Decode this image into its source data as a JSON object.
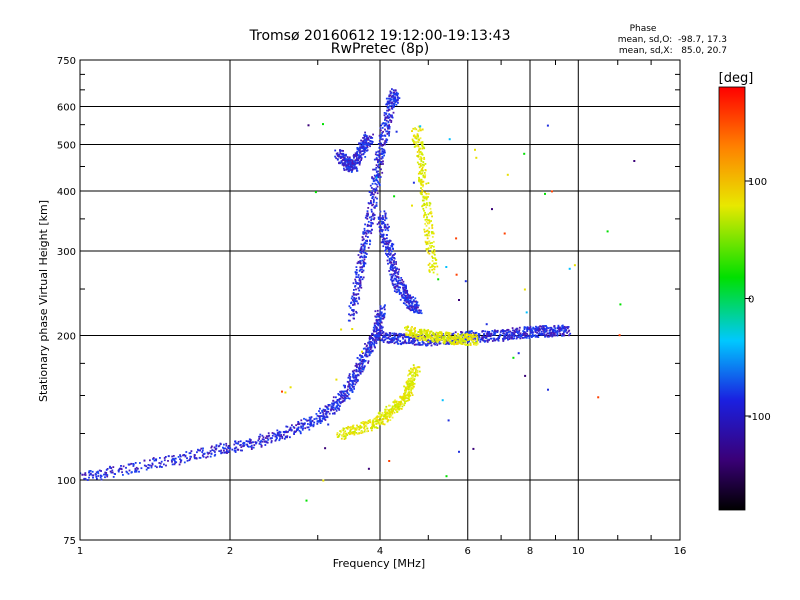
{
  "chart_data": {
    "type": "scatter",
    "title": "Tromsø 20160612 19:12:00-19:13:43",
    "subtitle": "RwPretec (8p)",
    "xlabel": "Frequency [MHz]",
    "ylabel": "Stationary phase Virtual Height [km]",
    "x_scale": "log2",
    "y_scale": "log",
    "xlim": [
      1,
      16
    ],
    "ylim": [
      75,
      750
    ],
    "x_ticks": [
      1,
      2,
      4,
      6,
      8,
      10,
      16
    ],
    "x_tick_labels": [
      "1",
      "2",
      "4",
      "6",
      "8",
      "10",
      "16"
    ],
    "y_ticks": [
      75,
      100,
      200,
      300,
      400,
      500,
      600,
      750
    ],
    "y_tick_labels": [
      "75",
      "100",
      "200",
      "300",
      "400",
      "500",
      "600",
      "750"
    ],
    "grid": true,
    "legend": {
      "title": "Phase",
      "line1": "mean, sd,O:  -98.7, 17.3",
      "line2": "mean, sd,X:   85.0, 20.7"
    },
    "colorbar": {
      "label": "[deg]",
      "range": [
        -180,
        180
      ],
      "ticks": [
        100,
        0,
        -100
      ],
      "tick_labels": [
        "100",
        "0",
        "-100"
      ]
    },
    "series": [
      {
        "name": "O-mode trace",
        "phase_deg": -100,
        "color": "#2030e0",
        "segments": [
          {
            "f": [
              1.0,
              1.2,
              1.5,
              1.8,
              2.1,
              2.4,
              2.7,
              3.0,
              3.2,
              3.4,
              3.55,
              3.7,
              3.85,
              3.95,
              4.0
            ],
            "h": [
              102,
              105,
              110,
              115,
              118,
              123,
              128,
              135,
              142,
              152,
              165,
              180,
              196,
              210,
              230
            ]
          },
          {
            "f": [
              3.5,
              3.6,
              3.7,
              3.8,
              3.9,
              4.0,
              4.1,
              4.2,
              4.3
            ],
            "h": [
              220,
              260,
              300,
              350,
              420,
              480,
              550,
              620,
              640
            ]
          },
          {
            "f": [
              3.3,
              3.4,
              3.5,
              3.6,
              3.7,
              3.8
            ],
            "h": [
              480,
              460,
              450,
              470,
              500,
              520
            ]
          },
          {
            "f": [
              4.0,
              4.1,
              4.2,
              4.3,
              4.45,
              4.6,
              4.75
            ],
            "h": [
              360,
              320,
              290,
              260,
              245,
              235,
              225
            ]
          },
          {
            "f": [
              4.0,
              4.3,
              4.6,
              5.0,
              5.5,
              6.0,
              6.5,
              7.0,
              7.5,
              8.0,
              8.5,
              9.0,
              9.5
            ],
            "h": [
              199,
              198,
              197,
              196,
              198,
              200,
              200,
              201,
              203,
              204,
              205,
              205,
              206
            ]
          }
        ]
      },
      {
        "name": "X-mode trace",
        "phase_deg": 85,
        "color": "#e8e000",
        "segments": [
          {
            "f": [
              3.3,
              3.6,
              3.9,
              4.1,
              4.3,
              4.5,
              4.6,
              4.7
            ],
            "h": [
              125,
              128,
              132,
              137,
              143,
              150,
              160,
              172
            ]
          },
          {
            "f": [
              4.7,
              4.8,
              4.9,
              5.0,
              5.1
            ],
            "h": [
              540,
              480,
              400,
              330,
              270
            ]
          },
          {
            "f": [
              4.5,
              4.8,
              5.0,
              5.3,
              5.6,
              5.9,
              6.2
            ],
            "h": [
              205,
              202,
              200,
              199,
              198,
              197,
              197
            ]
          }
        ]
      }
    ]
  }
}
